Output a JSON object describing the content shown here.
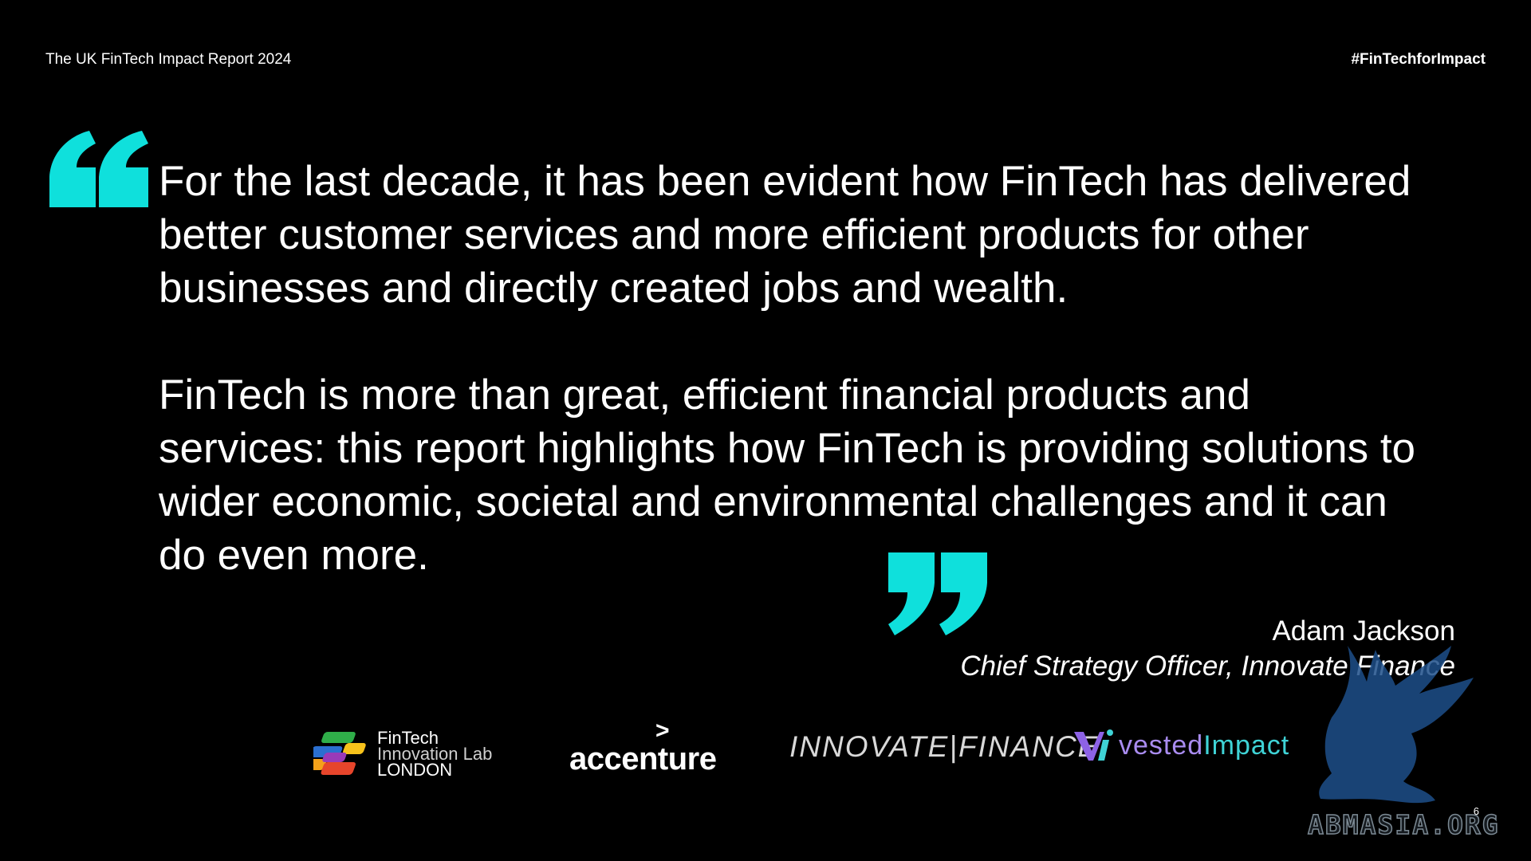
{
  "header": {
    "report_title": "The UK FinTech Impact Report 2024",
    "hashtag": "#FinTechforImpact"
  },
  "quote": {
    "paragraph1": "For the last decade, it has been evident how FinTech has delivered better customer services and more efficient products for other businesses and directly created jobs and wealth.",
    "paragraph2": "FinTech is more than great, efficient financial products and services: this report highlights how FinTech is providing solutions to wider economic, societal and environmental challenges and it can do even more."
  },
  "author": {
    "name": "Adam Jackson",
    "role": "Chief Strategy Officer, Innovate Finance"
  },
  "logos": {
    "fintech_lab": {
      "line1": "FinTech",
      "line2": "Innovation Lab",
      "line3": "LONDON"
    },
    "accenture": {
      "arrow": ">",
      "name": "accenture"
    },
    "innovate_finance": {
      "name": "INNOVATE|FINANCE"
    },
    "vested_impact": {
      "part1": "vested",
      "part2": "Impact"
    }
  },
  "page_number": "6",
  "watermark": {
    "text": "ABMASIA.ORG"
  },
  "colors": {
    "background": "#000000",
    "text": "#ffffff",
    "quote_mark": "#0fe0dc"
  }
}
